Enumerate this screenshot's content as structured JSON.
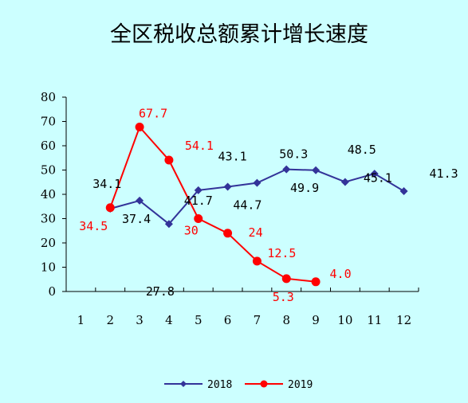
{
  "chart_data": {
    "type": "line",
    "title": "全区税收总额累计增长速度",
    "categories": [
      "1",
      "2",
      "3",
      "4",
      "5",
      "6",
      "7",
      "8",
      "9",
      "10",
      "11",
      "12"
    ],
    "ylim": [
      0,
      80
    ],
    "yticks": [
      "0",
      "10",
      "20",
      "30",
      "40",
      "50",
      "60",
      "70",
      "80"
    ],
    "grid": false,
    "legend_position": "bottom",
    "series": [
      {
        "name": "2018",
        "color": "#333399",
        "marker": "diamond",
        "x": [
          2,
          3,
          4,
          5,
          6,
          7,
          8,
          9,
          10,
          11,
          12
        ],
        "values": [
          34.1,
          37.4,
          27.8,
          41.7,
          43.1,
          44.7,
          50.3,
          49.9,
          45.1,
          48.5,
          41.3
        ],
        "labels": [
          "34.1",
          "37.4",
          "27.8",
          "41.7",
          "43.1",
          "44.7",
          "50.3",
          "49.9",
          "45.1",
          "48.5",
          "41.3"
        ]
      },
      {
        "name": "2019",
        "color": "#ff0000",
        "marker": "circle",
        "x": [
          2,
          3,
          4,
          5,
          6,
          7,
          8,
          9
        ],
        "values": [
          34.5,
          67.7,
          54.1,
          30,
          24,
          12.5,
          5.3,
          4.0
        ],
        "labels": [
          "34.5",
          "67.7",
          "54.1",
          "30",
          "24",
          "12.5",
          "5.3",
          "4.0"
        ]
      }
    ]
  }
}
